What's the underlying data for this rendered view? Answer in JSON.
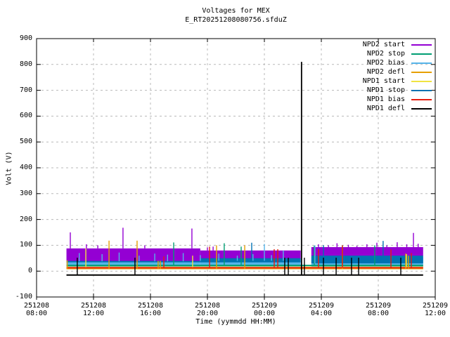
{
  "chart_data": {
    "type": "line",
    "title": "Voltages for MEX",
    "subtitle": "E_RT20251208080756.sfduZ",
    "xlabel": "Time (yymmdd HH:MM)",
    "ylabel": "Volt (V)",
    "ylim": [
      -100,
      900
    ],
    "x_range_hours": 28,
    "grid": true,
    "legend_position": "top-right-inside",
    "grid_color": "#b8b8b8",
    "border_color": "#000000",
    "yticks": [
      {
        "v": -100,
        "label": "-100"
      },
      {
        "v": 0,
        "label": "0"
      },
      {
        "v": 100,
        "label": "100"
      },
      {
        "v": 200,
        "label": "200"
      },
      {
        "v": 300,
        "label": "300"
      },
      {
        "v": 400,
        "label": "400"
      },
      {
        "v": 500,
        "label": "500"
      },
      {
        "v": 600,
        "label": "600"
      },
      {
        "v": 700,
        "label": "700"
      },
      {
        "v": 800,
        "label": "800"
      },
      {
        "v": 900,
        "label": "900"
      }
    ],
    "xticks": [
      {
        "t": 0,
        "date": "251208",
        "time": "08:00"
      },
      {
        "t": 4,
        "date": "251208",
        "time": "12:00"
      },
      {
        "t": 8,
        "date": "251208",
        "time": "16:00"
      },
      {
        "t": 12,
        "date": "251208",
        "time": "20:00"
      },
      {
        "t": 16,
        "date": "251209",
        "time": "00:00"
      },
      {
        "t": 20,
        "date": "251209",
        "time": "04:00"
      },
      {
        "t": 24,
        "date": "251209",
        "time": "08:00"
      },
      {
        "t": 28,
        "date": "251209",
        "time": "12:00"
      }
    ],
    "time_origin_note": "t = hours after 251208 08:00; data spans t=2.1 to t=27.15",
    "series": [
      {
        "name": "NPD2 start",
        "color": "#9400d3",
        "bands": [
          {
            "t": [
              2.1,
              11.5
            ],
            "v": [
              35,
              88
            ]
          },
          {
            "t": [
              11.5,
              18.55
            ],
            "v": [
              45,
              80
            ]
          },
          {
            "t": [
              19.3,
              27.15
            ],
            "v": [
              58,
              93
            ]
          }
        ],
        "lines": [],
        "spikes": [
          [
            2.37,
            88,
            150
          ],
          [
            3.5,
            88,
            104
          ],
          [
            4.3,
            88,
            100
          ],
          [
            6.07,
            88,
            168
          ],
          [
            7.6,
            88,
            100
          ],
          [
            10.91,
            88,
            165
          ],
          [
            12.0,
            80,
            92
          ],
          [
            12.4,
            80,
            95
          ],
          [
            19.8,
            93,
            104
          ],
          [
            20.5,
            93,
            100
          ],
          [
            21.1,
            93,
            108
          ],
          [
            21.9,
            93,
            102
          ],
          [
            22.5,
            93,
            98
          ],
          [
            23.2,
            93,
            104
          ],
          [
            23.9,
            93,
            110
          ],
          [
            24.6,
            93,
            100
          ],
          [
            25.33,
            93,
            112
          ],
          [
            26.0,
            93,
            104
          ],
          [
            26.47,
            93,
            148
          ],
          [
            26.8,
            93,
            106
          ]
        ]
      },
      {
        "name": "NPD2 stop",
        "color": "#009e73",
        "bands": [],
        "lines": [
          {
            "t": [
              2.1,
              27.15
            ],
            "v": 22
          }
        ],
        "spikes": [
          [
            9.63,
            22,
            111
          ],
          [
            13.18,
            22,
            108
          ],
          [
            14.37,
            22,
            95
          ],
          [
            19.5,
            22,
            98
          ],
          [
            21.48,
            22,
            100
          ],
          [
            23.75,
            22,
            100
          ]
        ]
      },
      {
        "name": "NPD2 bias",
        "color": "#56b4e9",
        "bands": [
          {
            "t": [
              2.1,
              11.5
            ],
            "v": [
              15,
              38
            ]
          },
          {
            "t": [
              11.5,
              18.55
            ],
            "v": [
              18,
              40
            ]
          },
          {
            "t": [
              19.3,
              27.15
            ],
            "v": [
              16,
              55
            ]
          }
        ],
        "lines": [],
        "spikes": [
          [
            3.0,
            38,
            70
          ],
          [
            4.6,
            38,
            66
          ],
          [
            5.8,
            38,
            72
          ],
          [
            7.2,
            38,
            60
          ],
          [
            8.3,
            38,
            68
          ],
          [
            9.2,
            38,
            64
          ],
          [
            10.3,
            38,
            70
          ],
          [
            11.5,
            40,
            62
          ],
          [
            12.8,
            40,
            68
          ],
          [
            14.1,
            40,
            60
          ],
          [
            15.2,
            40,
            66
          ],
          [
            16.0,
            40,
            105
          ],
          [
            16.5,
            40,
            62
          ],
          [
            17.33,
            40,
            80
          ],
          [
            19.55,
            30,
            100
          ]
        ]
      },
      {
        "name": "NPD2 defl",
        "color": "#e69f00",
        "bands": [],
        "lines": [
          {
            "t": [
              2.1,
              27.15
            ],
            "v": 10
          }
        ],
        "spikes": [
          [
            2.15,
            10,
            42
          ],
          [
            5.09,
            10,
            118
          ],
          [
            7.06,
            10,
            118
          ],
          [
            8.54,
            10,
            40
          ],
          [
            8.69,
            10,
            40
          ],
          [
            12.64,
            10,
            100
          ],
          [
            14.62,
            10,
            100
          ],
          [
            21.48,
            10,
            92
          ],
          [
            25.93,
            10,
            68
          ],
          [
            26.12,
            10,
            60
          ]
        ]
      },
      {
        "name": "NPD1 start",
        "color": "#f0e442",
        "bands": [],
        "lines": [
          {
            "t": [
              2.1,
              27.15
            ],
            "v": 15
          }
        ],
        "spikes": [
          [
            3.46,
            15,
            88
          ],
          [
            10.96,
            15,
            60
          ],
          [
            25.98,
            15,
            66
          ]
        ]
      },
      {
        "name": "NPD1 stop",
        "color": "#0072b2",
        "bands": [
          {
            "t": [
              11.5,
              18.55
            ],
            "v": [
              34,
              50
            ]
          },
          {
            "t": [
              19.3,
              27.15
            ],
            "v": [
              30,
              60
            ]
          }
        ],
        "lines": [
          {
            "t": [
              2.1,
              11.5
            ],
            "v": 37
          }
        ],
        "spikes": [
          [
            15.11,
            50,
            110
          ],
          [
            20.15,
            60,
            100
          ],
          [
            24.34,
            60,
            117
          ]
        ]
      },
      {
        "name": "NPD1 bias",
        "color": "#e51e10",
        "bands": [],
        "lines": [
          {
            "t": [
              2.1,
              27.15
            ],
            "v": 13
          }
        ],
        "spikes": [
          [
            8.94,
            13,
            57
          ],
          [
            12.15,
            13,
            95
          ],
          [
            16.69,
            13,
            85
          ],
          [
            16.94,
            13,
            85
          ],
          [
            19.8,
            13,
            85
          ],
          [
            21.48,
            13,
            100
          ],
          [
            24.89,
            13,
            84
          ],
          [
            26.32,
            13,
            70
          ]
        ]
      },
      {
        "name": "NPD1 defl",
        "color": "#000000",
        "bands": [],
        "lines": [
          {
            "t": [
              2.1,
              27.15
            ],
            "v": -15
          }
        ],
        "spikes": [
          [
            2.86,
            -15,
            52
          ],
          [
            6.91,
            -15,
            52
          ],
          [
            17.43,
            -15,
            52
          ],
          [
            17.68,
            -15,
            52
          ],
          [
            18.61,
            -15,
            810
          ],
          [
            18.81,
            -15,
            52
          ],
          [
            20.15,
            -15,
            52
          ],
          [
            21.04,
            -15,
            52
          ],
          [
            22.12,
            -15,
            52
          ],
          [
            22.62,
            -15,
            52
          ],
          [
            25.58,
            -15,
            52
          ]
        ]
      }
    ]
  }
}
